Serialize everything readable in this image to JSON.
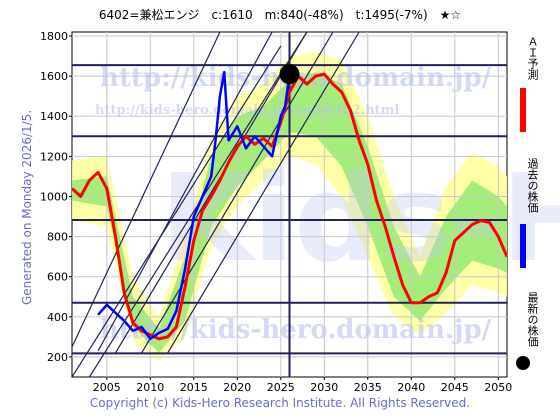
{
  "header": {
    "title": "6402=兼松エンジ　c:1610　m:840(-48%)　t:1495(-7%)　★☆"
  },
  "side_label": "Generated on Monday 2026/1/5.",
  "footer": "Copyright (c) Kids-Hero Research Institute. All Rights Reserved.",
  "watermarks": [
    "http://kids-hero.domain.jp/",
    "http://kids-hero.domain.jp/code6402.html",
    "http://kids-hero.domain.jp/",
    "Kids-Hero"
  ],
  "legend": [
    {
      "label": "ＡＩ予測",
      "color": "#ff0000"
    },
    {
      "label": "過去の株価",
      "color": "#0000ff"
    },
    {
      "label": "最新の株価",
      "color": "#000000"
    }
  ],
  "colors": {
    "prediction": "#ff0000",
    "price": "#0000ff",
    "band_outer": "#ffff99",
    "band_inner": "#8ee86e",
    "lines": "#22225a",
    "grid": "#c8c8c8"
  },
  "chart_data": {
    "type": "line",
    "xlim": [
      2001,
      2051
    ],
    "ylim": [
      100,
      1820
    ],
    "x_ticks": [
      2005,
      2010,
      2015,
      2020,
      2025,
      2030,
      2035,
      2040,
      2045,
      2050
    ],
    "y_ticks": [
      200,
      400,
      600,
      800,
      1000,
      1200,
      1400,
      1600,
      1800
    ],
    "horizontal_lines": [
      218,
      470,
      883,
      1300,
      1655
    ],
    "vertical_line": 2026,
    "latest_point": {
      "x": 2026,
      "y": 1610
    },
    "series": [
      {
        "name": "AI予測",
        "points": [
          [
            2001,
            1040
          ],
          [
            2002,
            1000
          ],
          [
            2003,
            1080
          ],
          [
            2004,
            1120
          ],
          [
            2005,
            1040
          ],
          [
            2006,
            800
          ],
          [
            2007,
            520
          ],
          [
            2008,
            370
          ],
          [
            2009,
            330
          ],
          [
            2010,
            310
          ],
          [
            2011,
            290
          ],
          [
            2012,
            300
          ],
          [
            2013,
            350
          ],
          [
            2014,
            550
          ],
          [
            2015,
            780
          ],
          [
            2016,
            930
          ],
          [
            2017,
            1000
          ],
          [
            2018,
            1080
          ],
          [
            2019,
            1170
          ],
          [
            2020,
            1250
          ],
          [
            2021,
            1300
          ],
          [
            2022,
            1260
          ],
          [
            2023,
            1290
          ],
          [
            2024,
            1250
          ],
          [
            2025,
            1370
          ],
          [
            2026,
            1520
          ],
          [
            2027,
            1600
          ],
          [
            2028,
            1560
          ],
          [
            2029,
            1600
          ],
          [
            2030,
            1610
          ],
          [
            2031,
            1560
          ],
          [
            2032,
            1520
          ],
          [
            2033,
            1430
          ],
          [
            2034,
            1280
          ],
          [
            2035,
            1160
          ],
          [
            2036,
            980
          ],
          [
            2037,
            850
          ],
          [
            2038,
            700
          ],
          [
            2039,
            560
          ],
          [
            2040,
            470
          ],
          [
            2041,
            470
          ],
          [
            2042,
            500
          ],
          [
            2043,
            520
          ],
          [
            2044,
            620
          ],
          [
            2045,
            780
          ],
          [
            2046,
            820
          ],
          [
            2047,
            860
          ],
          [
            2048,
            880
          ],
          [
            2049,
            870
          ],
          [
            2050,
            800
          ],
          [
            2051,
            700
          ]
        ]
      },
      {
        "name": "過去の株価",
        "points": [
          [
            2004,
            410
          ],
          [
            2005,
            460
          ],
          [
            2006,
            420
          ],
          [
            2007,
            380
          ],
          [
            2008,
            330
          ],
          [
            2009,
            350
          ],
          [
            2010,
            290
          ],
          [
            2011,
            320
          ],
          [
            2012,
            340
          ],
          [
            2013,
            430
          ],
          [
            2014,
            640
          ],
          [
            2015,
            900
          ],
          [
            2016,
            1000
          ],
          [
            2017,
            1100
          ],
          [
            2017.5,
            1280
          ],
          [
            2018,
            1500
          ],
          [
            2018.5,
            1620
          ],
          [
            2019,
            1280
          ],
          [
            2020,
            1350
          ],
          [
            2021,
            1240
          ],
          [
            2022,
            1300
          ],
          [
            2023,
            1250
          ],
          [
            2024,
            1200
          ],
          [
            2024.5,
            1300
          ],
          [
            2025,
            1400
          ],
          [
            2025.5,
            1450
          ],
          [
            2026,
            1610
          ]
        ]
      }
    ],
    "band_outer": {
      "upper": [
        [
          2001,
          1180
        ],
        [
          2005,
          1200
        ],
        [
          2008,
          600
        ],
        [
          2011,
          400
        ],
        [
          2014,
          800
        ],
        [
          2017,
          1300
        ],
        [
          2020,
          1500
        ],
        [
          2023,
          1560
        ],
        [
          2026,
          1700
        ],
        [
          2029,
          1720
        ],
        [
          2032,
          1680
        ],
        [
          2035,
          1400
        ],
        [
          2038,
          1000
        ],
        [
          2041,
          700
        ],
        [
          2044,
          1050
        ],
        [
          2047,
          1220
        ],
        [
          2050,
          1150
        ],
        [
          2051,
          1100
        ]
      ],
      "lower": [
        [
          2001,
          880
        ],
        [
          2005,
          850
        ],
        [
          2008,
          280
        ],
        [
          2011,
          180
        ],
        [
          2014,
          300
        ],
        [
          2017,
          750
        ],
        [
          2020,
          950
        ],
        [
          2023,
          1080
        ],
        [
          2026,
          1200
        ],
        [
          2029,
          1160
        ],
        [
          2032,
          1000
        ],
        [
          2035,
          700
        ],
        [
          2038,
          400
        ],
        [
          2041,
          310
        ],
        [
          2044,
          420
        ],
        [
          2047,
          560
        ],
        [
          2050,
          520
        ],
        [
          2051,
          500
        ]
      ]
    },
    "band_inner": {
      "upper": [
        [
          2001,
          1080
        ],
        [
          2005,
          1100
        ],
        [
          2008,
          500
        ],
        [
          2011,
          340
        ],
        [
          2014,
          700
        ],
        [
          2017,
          1200
        ],
        [
          2020,
          1400
        ],
        [
          2023,
          1450
        ],
        [
          2026,
          1580
        ],
        [
          2029,
          1620
        ],
        [
          2032,
          1560
        ],
        [
          2035,
          1250
        ],
        [
          2038,
          850
        ],
        [
          2041,
          600
        ],
        [
          2044,
          900
        ],
        [
          2047,
          1080
        ],
        [
          2050,
          1000
        ],
        [
          2051,
          950
        ]
      ],
      "lower": [
        [
          2001,
          980
        ],
        [
          2005,
          950
        ],
        [
          2008,
          350
        ],
        [
          2011,
          220
        ],
        [
          2014,
          380
        ],
        [
          2017,
          850
        ],
        [
          2020,
          1050
        ],
        [
          2023,
          1180
        ],
        [
          2026,
          1320
        ],
        [
          2029,
          1300
        ],
        [
          2032,
          1150
        ],
        [
          2035,
          850
        ],
        [
          2038,
          500
        ],
        [
          2041,
          380
        ],
        [
          2044,
          540
        ],
        [
          2047,
          680
        ],
        [
          2050,
          640
        ],
        [
          2051,
          620
        ]
      ]
    },
    "diagonal_lines": [
      [
        [
          2001,
          250
        ],
        [
          2018,
          1820
        ]
      ],
      [
        [
          2004,
          230
        ],
        [
          2024,
          1820
        ]
      ],
      [
        [
          2006,
          220
        ],
        [
          2028,
          1820
        ]
      ],
      [
        [
          2009,
          220
        ],
        [
          2031,
          1820
        ]
      ],
      [
        [
          2012,
          220
        ],
        [
          2034,
          1820
        ]
      ],
      [
        [
          2001,
          100
        ],
        [
          2025,
          1750
        ]
      ],
      [
        [
          2003,
          100
        ],
        [
          2028,
          1820
        ]
      ]
    ]
  }
}
